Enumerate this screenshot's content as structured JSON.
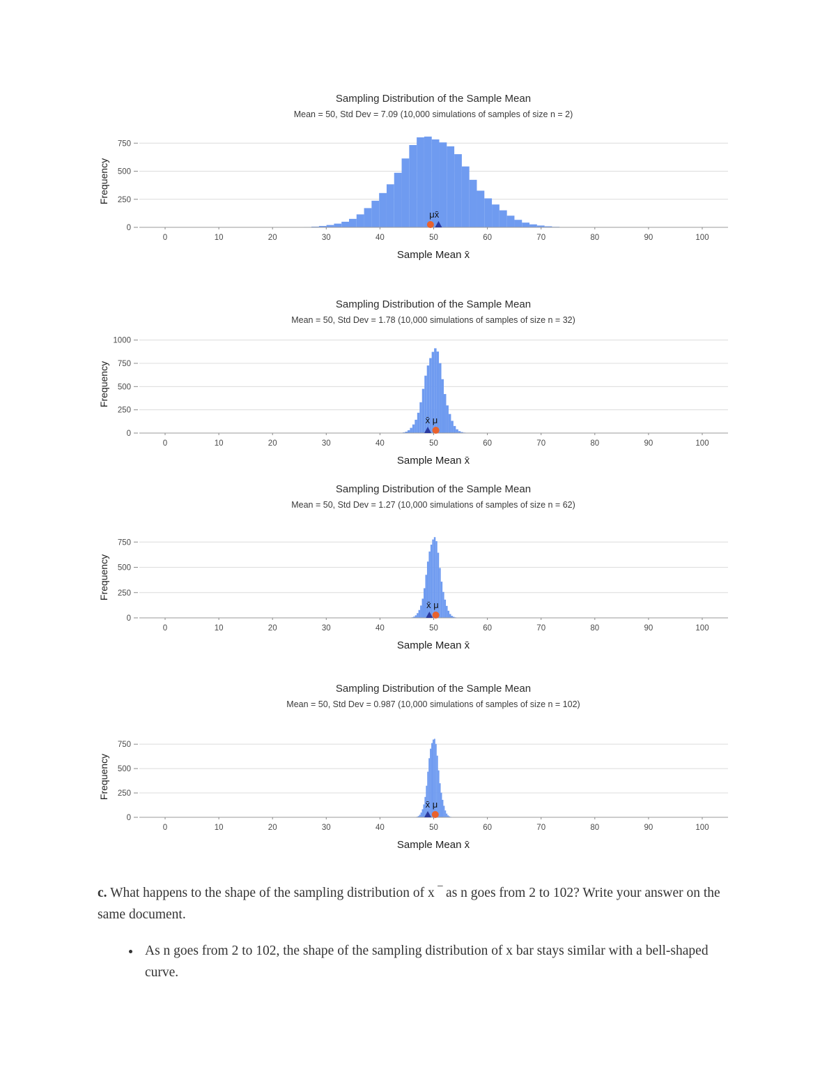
{
  "page": {
    "question_label": "c.",
    "question_text": "What happens to the shape of the sampling distribution of x ‾ as n goes from 2 to 102?  Write your answer on the same document.",
    "answer_bullet": "As n goes from 2 to 102, the shape of the sampling distribution of x bar stays similar with a bell-shaped curve."
  },
  "colors": {
    "bar_blue": "#6F9BF0",
    "mu_orange": "#E8622D",
    "xbar_navy": "#2B3A9E",
    "gridline": "#dcdcdc",
    "axis": "#9a9a9a"
  },
  "chart_data": [
    {
      "type": "histogram",
      "title": "Sampling Distribution of the Sample Mean",
      "subtitle": "Mean = 50, Std Dev = 7.09  (10,000 simulations of samples of size n = 2)",
      "mean": 50,
      "std_dev": 7.09,
      "n": 2,
      "simulations": 10000,
      "peak_frequency": 780,
      "bin_width": 1.4,
      "xlabel": "Sample Mean x̄",
      "ylabel": "Frequency",
      "x_ticks": [
        0,
        10,
        20,
        30,
        40,
        50,
        60,
        70,
        80,
        90,
        100
      ],
      "y_ticks": [
        0,
        250,
        500,
        750
      ],
      "ylim": [
        0,
        820
      ],
      "bar_color": "#6F9BF0",
      "annotation": {
        "label": "μx̄",
        "label_x": 50.1,
        "markers": [
          {
            "shape": "circle",
            "color": "#E8622D",
            "x": 49.4
          },
          {
            "shape": "triangle",
            "color": "#2B3A9E",
            "x": 50.9
          }
        ]
      }
    },
    {
      "type": "histogram",
      "title": "Sampling Distribution of the Sample Mean",
      "subtitle": "Mean = 50, Std Dev = 1.78  (10,000 simulations of samples of size n = 32)",
      "mean": 50,
      "std_dev": 1.78,
      "n": 32,
      "simulations": 10000,
      "peak_frequency": 870,
      "bin_width": 0.45,
      "xlabel": "Sample Mean x̄",
      "ylabel": "Frequency",
      "x_ticks": [
        0,
        10,
        20,
        30,
        40,
        50,
        60,
        70,
        80,
        90,
        100
      ],
      "y_ticks": [
        0,
        250,
        500,
        750,
        1000
      ],
      "ylim": [
        0,
        1050
      ],
      "bar_color": "#6F9BF0",
      "annotation": {
        "label": "x̄ μ",
        "label_x": 49.6,
        "markers": [
          {
            "shape": "triangle",
            "color": "#2B3A9E",
            "x": 48.9
          },
          {
            "shape": "circle",
            "color": "#E8622D",
            "x": 50.4
          }
        ]
      }
    },
    {
      "type": "histogram",
      "title": "Sampling Distribution of the Sample Mean",
      "subtitle": "Mean = 50, Std Dev = 1.27  (10,000 simulations of samples of size n = 62)",
      "mean": 50,
      "std_dev": 1.27,
      "n": 62,
      "simulations": 10000,
      "peak_frequency": 760,
      "bin_width": 0.32,
      "xlabel": "Sample Mean x̄",
      "ylabel": "Frequency",
      "x_ticks": [
        0,
        10,
        20,
        30,
        40,
        50,
        60,
        70,
        80,
        90,
        100
      ],
      "y_ticks": [
        0,
        250,
        500,
        750
      ],
      "ylim": [
        0,
        800
      ],
      "bar_color": "#6F9BF0",
      "annotation": {
        "label": "x̄ μ",
        "label_x": 49.8,
        "markers": [
          {
            "shape": "triangle",
            "color": "#2B3A9E",
            "x": 49.2
          },
          {
            "shape": "circle",
            "color": "#E8622D",
            "x": 50.4
          }
        ]
      }
    },
    {
      "type": "histogram",
      "title": "Sampling Distribution of the Sample Mean",
      "subtitle": "Mean = 50, Std Dev = 0.987  (10,000 simulations of samples of size n = 102)",
      "mean": 50,
      "std_dev": 0.987,
      "n": 102,
      "simulations": 10000,
      "peak_frequency": 790,
      "bin_width": 0.25,
      "xlabel": "Sample Mean x̄",
      "ylabel": "Frequency",
      "x_ticks": [
        0,
        10,
        20,
        30,
        40,
        50,
        60,
        70,
        80,
        90,
        100
      ],
      "y_ticks": [
        0,
        250,
        500,
        750
      ],
      "ylim": [
        0,
        830
      ],
      "bar_color": "#6F9BF0",
      "annotation": {
        "label": "x̄ μ",
        "label_x": 49.6,
        "markers": [
          {
            "shape": "triangle",
            "color": "#2B3A9E",
            "x": 48.9
          },
          {
            "shape": "circle",
            "color": "#E8622D",
            "x": 50.3
          }
        ]
      }
    }
  ]
}
